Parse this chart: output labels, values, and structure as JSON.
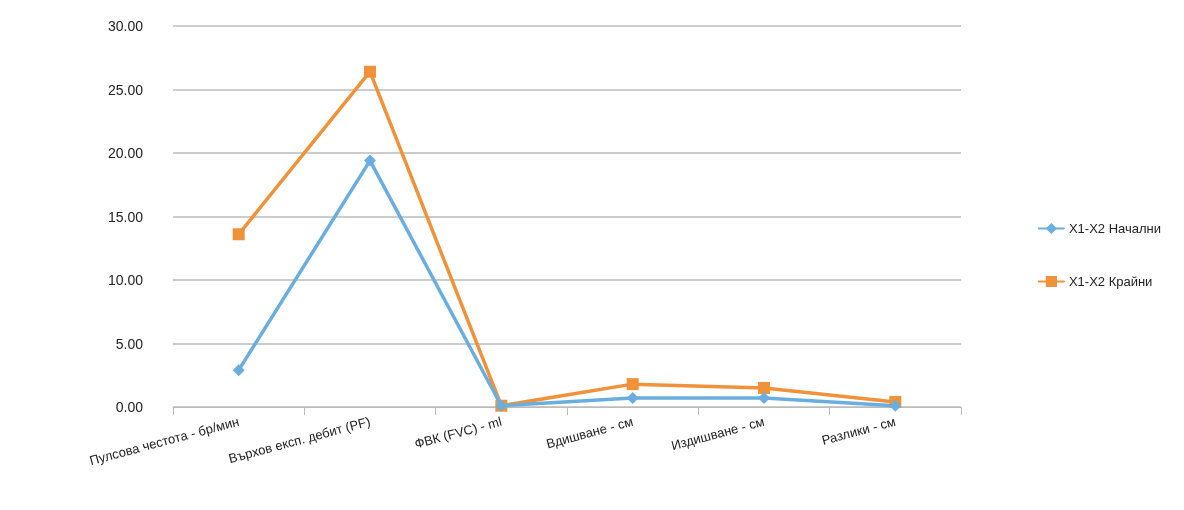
{
  "chart_data": {
    "type": "line",
    "categories": [
      "Пулсова честота - бр/мин",
      "Върхов експ. дебит (PF)",
      "ФВК (FVC) - ml",
      "Вдишване - см",
      "Издишване - см",
      "Разлики - см"
    ],
    "series": [
      {
        "name": "X1-X2 Начални",
        "color": "#6aaee0",
        "marker": "diamond",
        "values": [
          2.9,
          19.4,
          0.1,
          0.7,
          0.7,
          0.1
        ]
      },
      {
        "name": "X1-X2 Крайни",
        "color": "#f0923a",
        "marker": "square",
        "values": [
          13.6,
          26.4,
          0.1,
          1.8,
          1.5,
          0.4
        ]
      }
    ],
    "ylim": [
      0,
      30
    ],
    "yticks": [
      {
        "value": 0,
        "label": "0.00"
      },
      {
        "value": 5,
        "label": "5.00"
      },
      {
        "value": 10,
        "label": "10.00"
      },
      {
        "value": 15,
        "label": "15.00"
      },
      {
        "value": 20,
        "label": "20.00"
      },
      {
        "value": 25,
        "label": "25.00"
      },
      {
        "value": 30,
        "label": "30.00"
      }
    ],
    "grid": "y",
    "legend": "right",
    "line_style": "solid"
  }
}
